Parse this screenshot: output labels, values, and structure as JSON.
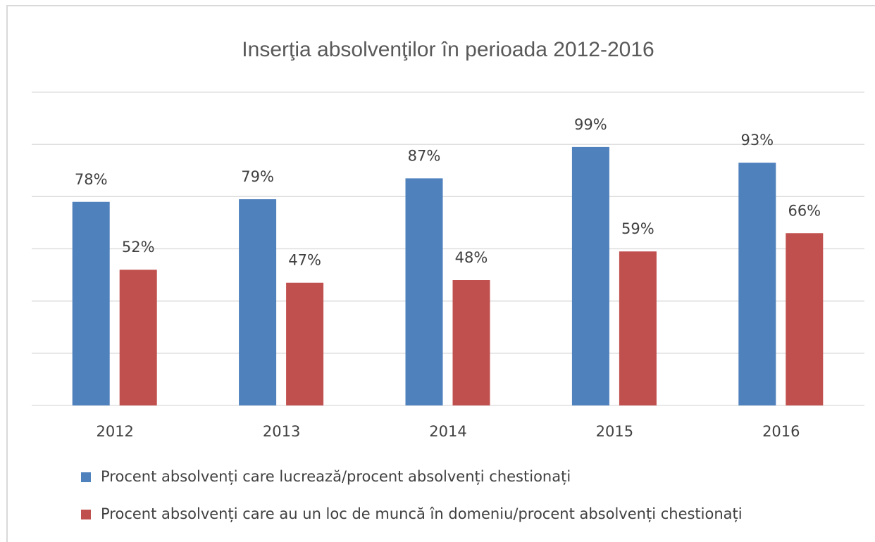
{
  "chart_data": {
    "type": "bar",
    "title": "Inserţia absolvenţilor în perioada 2012-2016",
    "categories": [
      "2012",
      "2013",
      "2014",
      "2015",
      "2016"
    ],
    "series": [
      {
        "name": "Procent absolvenți care lucrează/procent absolvenți chestionați",
        "color": "#4f81bd",
        "values": [
          78,
          79,
          87,
          99,
          93
        ],
        "value_labels": [
          "78%",
          "79%",
          "87%",
          "99%",
          "93%"
        ]
      },
      {
        "name": "Procent absolvenți care au un loc de muncă în domeniu/procent absolvenți chestionați",
        "color": "#c0504d",
        "values": [
          52,
          47,
          48,
          59,
          66
        ],
        "value_labels": [
          "52%",
          "47%",
          "48%",
          "59%",
          "66%"
        ]
      }
    ],
    "ylim": [
      0,
      120
    ],
    "yticks": [
      0,
      20,
      40,
      60,
      80,
      100,
      120
    ],
    "grid": true,
    "legend": "bottom"
  }
}
